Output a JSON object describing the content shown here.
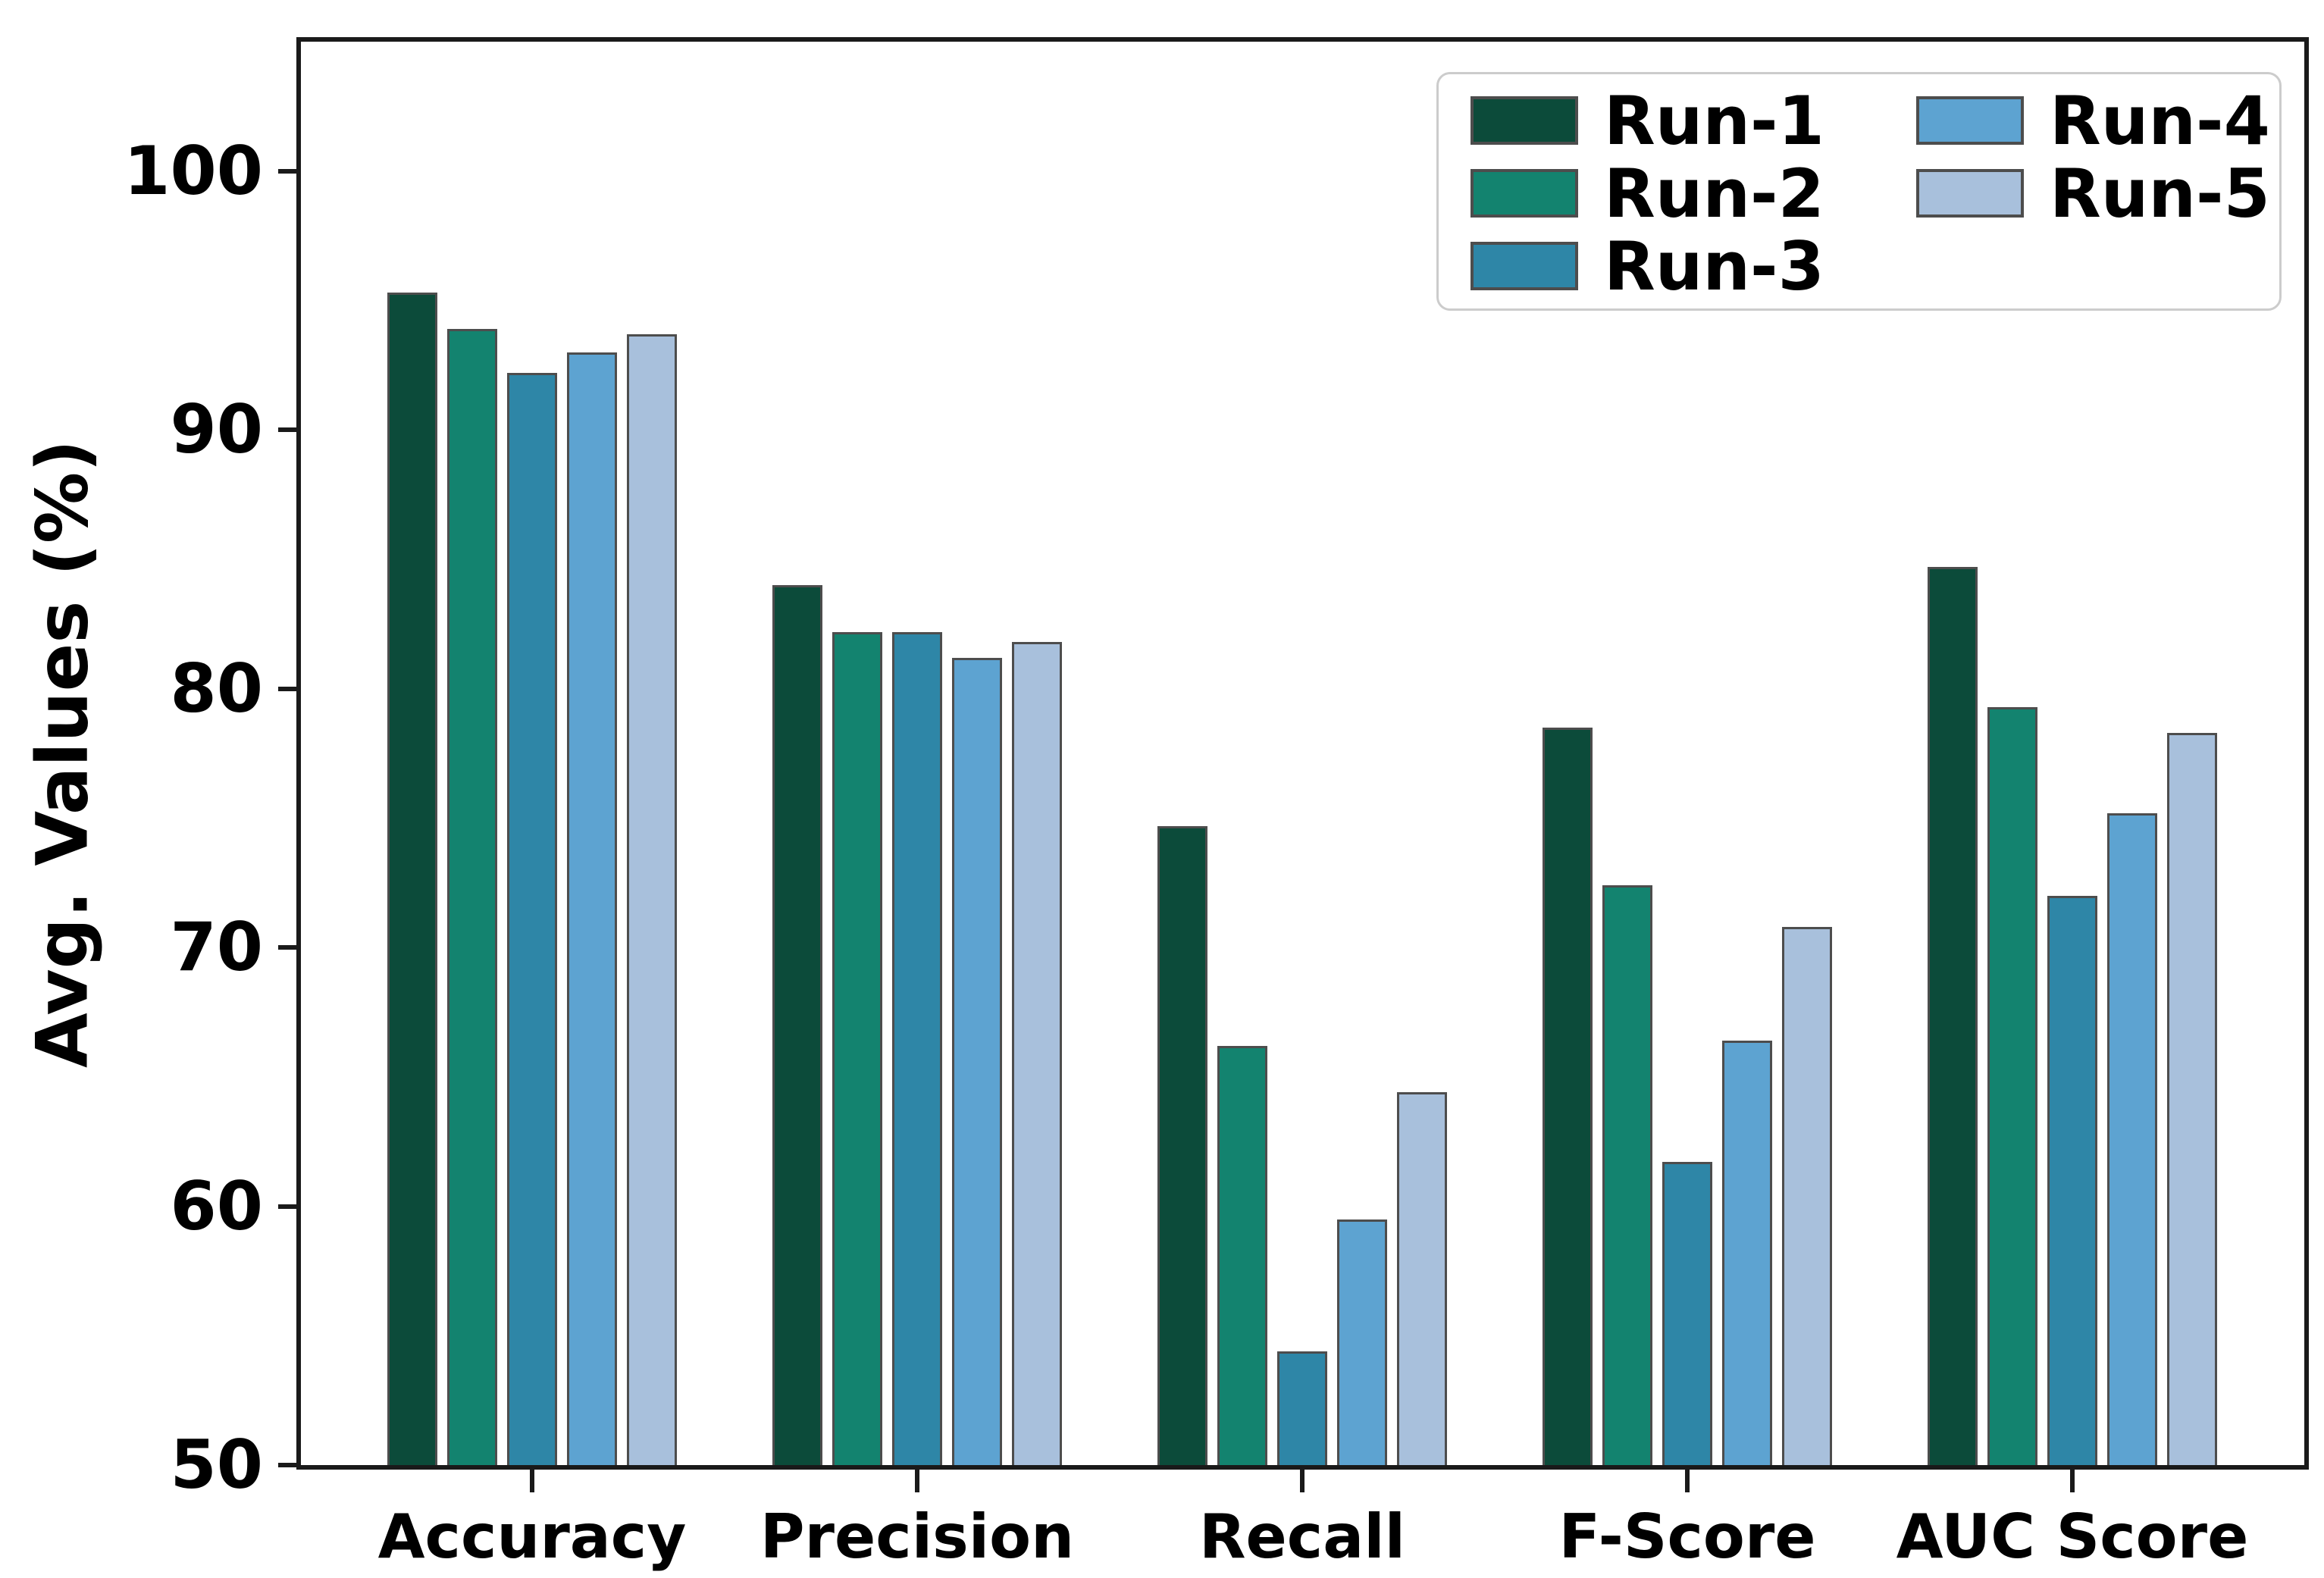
{
  "chart_data": {
    "type": "bar",
    "title": "",
    "xlabel": "",
    "ylabel": "Avg. Values (%)",
    "ylim": [
      50,
      105
    ],
    "yticks": [
      "50",
      "60",
      "70",
      "80",
      "90",
      "100"
    ],
    "ytick_values": [
      50,
      60,
      70,
      80,
      90,
      100
    ],
    "categories": [
      "Accuracy",
      "Precision",
      "Recall",
      "F-Score",
      "AUC Score"
    ],
    "series": [
      {
        "name": "Run-1",
        "color": "#0c4b3a",
        "values": [
          95.3,
          84.0,
          74.7,
          78.5,
          84.7
        ]
      },
      {
        "name": "Run-2",
        "color": "#13836f",
        "values": [
          93.9,
          82.2,
          66.2,
          72.4,
          79.3
        ]
      },
      {
        "name": "Run-3",
        "color": "#2e86a7",
        "values": [
          92.2,
          82.2,
          54.4,
          61.7,
          72.0
        ]
      },
      {
        "name": "Run-4",
        "color": "#5da3d1",
        "values": [
          93.0,
          81.2,
          59.5,
          66.4,
          75.2
        ]
      },
      {
        "name": "Run-5",
        "color": "#a8c0dc",
        "values": [
          93.7,
          81.8,
          64.4,
          70.8,
          78.3
        ]
      }
    ],
    "legend_position": "upper right",
    "legend_columns": 2,
    "grid": false,
    "bar_edge_color": "#4d4d4d",
    "axis_color": "#1a1a1a",
    "background_color": "#ffffff"
  }
}
